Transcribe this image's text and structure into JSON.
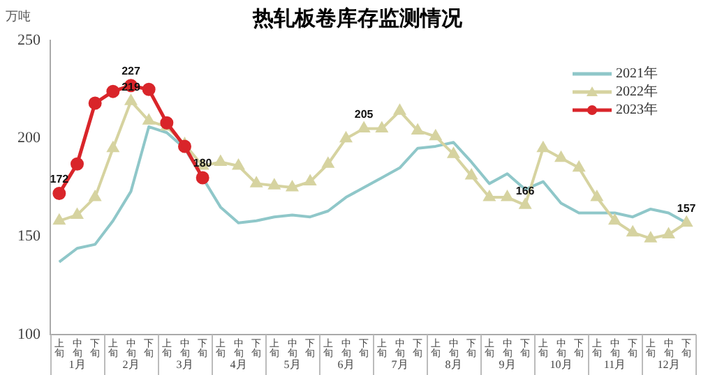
{
  "chart_data": {
    "type": "line",
    "title": "热轧板卷库存监测情况",
    "ylabel": "万吨",
    "categories": [
      "上旬",
      "中旬",
      "下旬",
      "上旬",
      "中旬",
      "下旬",
      "上旬",
      "中旬",
      "下旬",
      "上旬",
      "中旬",
      "下旬",
      "上旬",
      "中旬",
      "下旬",
      "上旬",
      "中旬",
      "下旬",
      "上旬",
      "中旬",
      "下旬",
      "上旬",
      "中旬",
      "下旬",
      "上旬",
      "中旬",
      "下旬",
      "上旬",
      "中旬",
      "下旬",
      "上旬",
      "中旬",
      "下旬",
      "上旬",
      "中旬",
      "下旬"
    ],
    "annotations": [
      "1月",
      "2月",
      "3月",
      "4月",
      "5月",
      "6月",
      "7月",
      "8月",
      "9月",
      "10月",
      "11月",
      "12月"
    ],
    "series": [
      {
        "name": "2021年",
        "color": "#8fc7c9",
        "marker": "none",
        "values": [
          137,
          144,
          146,
          158,
          173,
          206,
          203,
          195,
          180,
          165,
          157,
          158,
          160,
          161,
          160,
          163,
          170,
          175,
          180,
          185,
          195,
          196,
          198,
          188,
          177,
          182,
          174,
          178,
          167,
          162,
          162,
          162,
          160,
          164,
          162,
          157
        ]
      },
      {
        "name": "2022年",
        "color": "#d6d3a0",
        "marker": "triangle",
        "values": [
          158,
          161,
          170,
          195,
          219,
          209,
          206,
          197,
          186,
          188,
          186,
          177,
          176,
          175,
          178,
          187,
          200,
          205,
          205,
          214,
          204,
          201,
          192,
          181,
          170,
          170,
          166,
          195,
          190,
          185,
          170,
          158,
          152,
          149,
          151,
          157
        ],
        "value_labels": [
          null,
          null,
          null,
          null,
          "219",
          null,
          null,
          null,
          null,
          null,
          null,
          null,
          null,
          null,
          null,
          null,
          null,
          "205",
          null,
          null,
          null,
          null,
          null,
          null,
          null,
          null,
          "166",
          null,
          null,
          null,
          null,
          null,
          null,
          null,
          null,
          "157"
        ]
      },
      {
        "name": "2023年",
        "color": "#d9252a",
        "marker": "circle",
        "values": [
          172,
          187,
          218,
          224,
          227,
          225,
          208,
          196,
          180,
          null,
          null,
          null,
          null,
          null,
          null,
          null,
          null,
          null,
          null,
          null,
          null,
          null,
          null,
          null,
          null,
          null,
          null,
          null,
          null,
          null,
          null,
          null,
          null,
          null,
          null,
          null
        ],
        "value_labels": [
          "172",
          null,
          null,
          null,
          "227",
          null,
          null,
          null,
          "180",
          null,
          null,
          null,
          null,
          null,
          null,
          null,
          null,
          null,
          null,
          null,
          null,
          null,
          null,
          null,
          null,
          null,
          null,
          null,
          null,
          null,
          null,
          null,
          null,
          null,
          null,
          null
        ]
      }
    ],
    "ylim": [
      100,
      250
    ],
    "yticks": [
      100,
      150,
      200,
      250
    ],
    "grid": false,
    "legend": "top right"
  }
}
